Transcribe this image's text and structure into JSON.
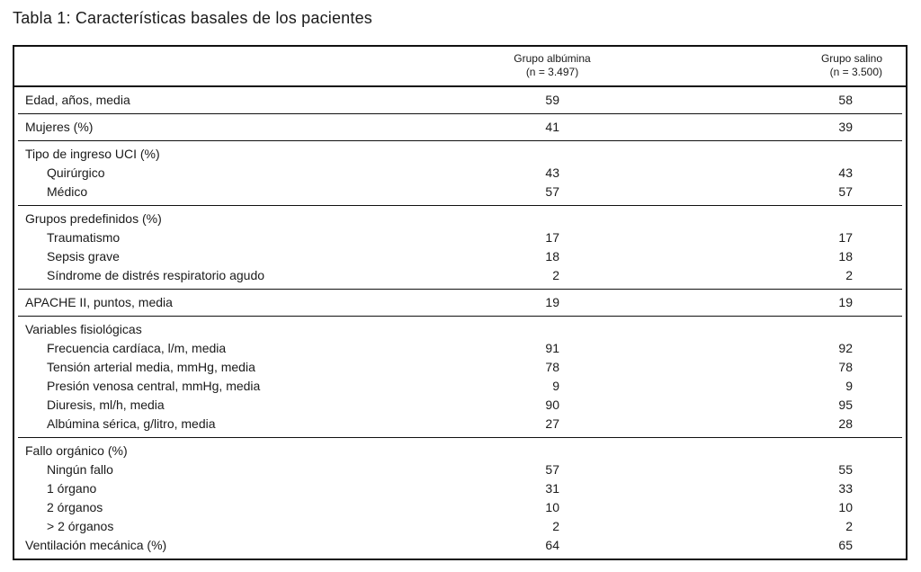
{
  "title": "Tabla 1: Características basales de los pacientes",
  "table": {
    "columns": {
      "albumina": {
        "line1": "Grupo albúmina",
        "line2": "(n = 3.497)"
      },
      "salino": {
        "line1": "Grupo salino",
        "line2": "(n = 3.500)"
      }
    },
    "sections": [
      {
        "rows": [
          {
            "label": "Edad, años, media",
            "albumina": "59",
            "salino": "58"
          }
        ]
      },
      {
        "rows": [
          {
            "label": "Mujeres (%)",
            "albumina": "41",
            "salino": "39"
          }
        ]
      },
      {
        "rows": [
          {
            "label": "Tipo de ingreso UCI (%)",
            "albumina": "",
            "salino": ""
          },
          {
            "label": "Quirúrgico",
            "albumina": "43",
            "salino": "43"
          },
          {
            "label": "Médico",
            "albumina": "57",
            "salino": "57"
          }
        ]
      },
      {
        "rows": [
          {
            "label": "Grupos predefinidos (%)",
            "albumina": "",
            "salino": ""
          },
          {
            "label": "Traumatismo",
            "albumina": "17",
            "salino": "17"
          },
          {
            "label": "Sepsis grave",
            "albumina": "18",
            "salino": "18"
          },
          {
            "label": "Síndrome de distrés respiratorio agudo",
            "albumina": "2",
            "salino": "2"
          }
        ]
      },
      {
        "rows": [
          {
            "label": "APACHE II, puntos, media",
            "albumina": "19",
            "salino": "19"
          }
        ]
      },
      {
        "rows": [
          {
            "label": "Variables fisiológicas",
            "albumina": "",
            "salino": ""
          },
          {
            "label": "Frecuencia cardíaca, l/m, media",
            "albumina": "91",
            "salino": "92"
          },
          {
            "label": "Tensión arterial media, mmHg, media",
            "albumina": "78",
            "salino": "78"
          },
          {
            "label": "Presión venosa central, mmHg, media",
            "albumina": "9",
            "salino": "9"
          },
          {
            "label": "Diuresis, ml/h, media",
            "albumina": "90",
            "salino": "95"
          },
          {
            "label": "Albúmina sérica, g/litro, media",
            "albumina": "27",
            "salino": "28"
          }
        ]
      },
      {
        "rows": [
          {
            "label": "Fallo orgánico (%)",
            "albumina": "",
            "salino": ""
          },
          {
            "label": "Ningún fallo",
            "albumina": "57",
            "salino": "55"
          },
          {
            "label": "1 órgano",
            "albumina": "31",
            "salino": "33"
          },
          {
            "label": "2 órganos",
            "albumina": "10",
            "salino": "10"
          },
          {
            "label": "> 2 órganos",
            "albumina": "2",
            "salino": "2"
          },
          {
            "label": "Ventilación mecánica (%)",
            "albumina": "64",
            "salino": "65"
          }
        ]
      }
    ]
  }
}
